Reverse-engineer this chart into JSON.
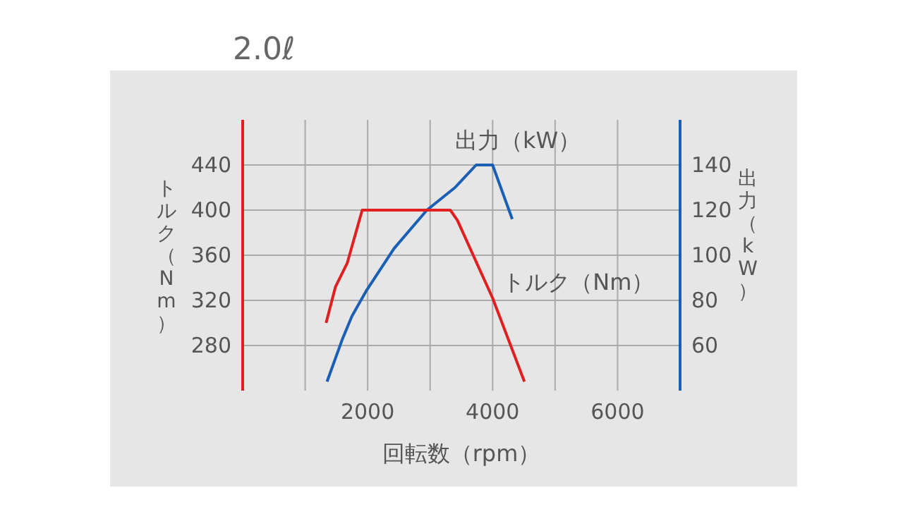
{
  "chart_data": {
    "type": "line",
    "title": "2.0ℓ",
    "xlabel": "回転数（rpm）",
    "ylabel": "トルク（Nm）",
    "y2label": "出力（kW）",
    "xlim": [
      0,
      7000
    ],
    "xticks": [
      {
        "value": 1000,
        "label": null
      },
      2000,
      {
        "value": 3000,
        "label": null
      },
      4000,
      {
        "value": 5000,
        "label": null
      },
      6000
    ],
    "ylim": [
      240,
      480
    ],
    "yticks": [
      280,
      320,
      360,
      400,
      440
    ],
    "y2lim": [
      40,
      160
    ],
    "y2ticks": [
      60,
      80,
      100,
      120,
      140
    ],
    "grid": true,
    "series": [
      {
        "name": "出力（kW）",
        "color": "#1a5fb4",
        "axis": "y2",
        "x": [
          1350,
          1598,
          1748,
          1973,
          2423,
          2948,
          3398,
          3736,
          4000,
          4314
        ],
        "values": [
          44,
          63,
          73,
          84,
          103,
          120,
          130,
          140,
          140,
          116
        ]
      },
      {
        "name": "トルク（Nm）",
        "color": "#e02020",
        "axis": "y",
        "x": [
          1335,
          1485,
          1673,
          1913,
          3323,
          3436,
          4000,
          4509
        ],
        "values": [
          300,
          332,
          353,
          400,
          400,
          391,
          322,
          248
        ]
      }
    ]
  }
}
